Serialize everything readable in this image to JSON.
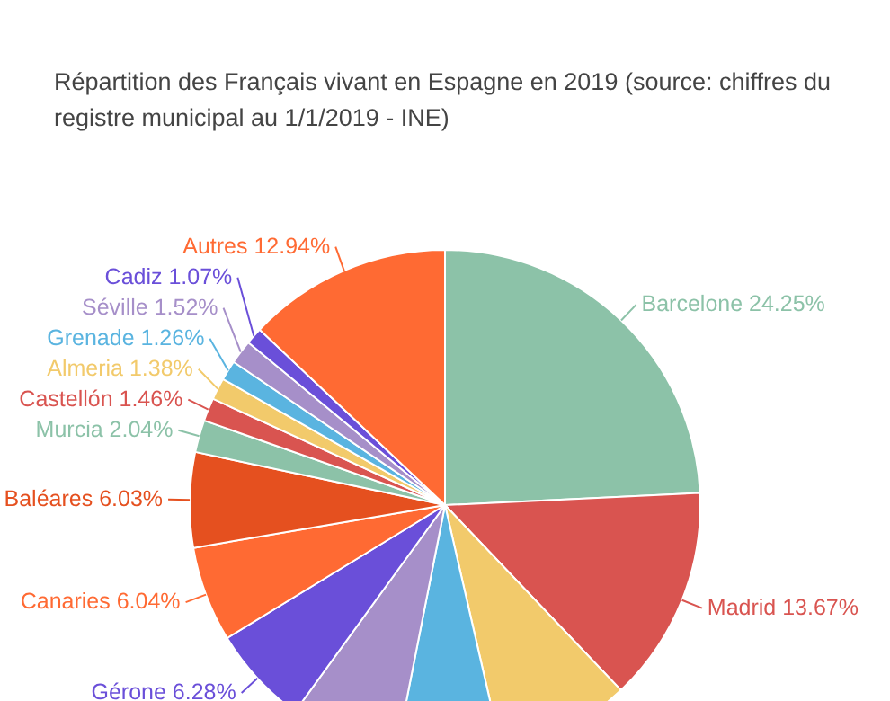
{
  "chart_data": {
    "type": "pie",
    "title": "Répartition des Français vivant en Espagne en 2019 (source: chiffres du registre municipal au 1/1/2019 - INE)",
    "categories": [
      "Barcelone",
      "Madrid",
      null,
      null,
      null,
      "Gérone",
      "Canaries",
      "Baléares",
      "Murcia",
      "Castellón",
      "Almeria",
      "Grenade",
      "Séville",
      "Cadiz",
      "Autres"
    ],
    "values": [
      24.25,
      13.67,
      8.5,
      6.7,
      6.9,
      6.28,
      6.04,
      6.03,
      2.04,
      1.46,
      1.38,
      1.26,
      1.52,
      1.07,
      12.94
    ],
    "value_labels": [
      "24.25%",
      "13.67%",
      null,
      null,
      null,
      "6.28%",
      "6.04%",
      "6.03%",
      "2.04%",
      "1.46%",
      "1.38%",
      "1.26%",
      "1.52%",
      "1.07%",
      "12.94%"
    ],
    "colors": [
      "#8cc2a8",
      "#d95450",
      "#f2ca6b",
      "#5ab4e0",
      "#a68fc9",
      "#6a4fd9",
      "#ff6a33",
      "#e5501f",
      "#8cc2a8",
      "#d95450",
      "#f2ca6b",
      "#5ab4e0",
      "#a68fc9",
      "#6a4fd9",
      "#ff6a33"
    ],
    "legend": false
  }
}
